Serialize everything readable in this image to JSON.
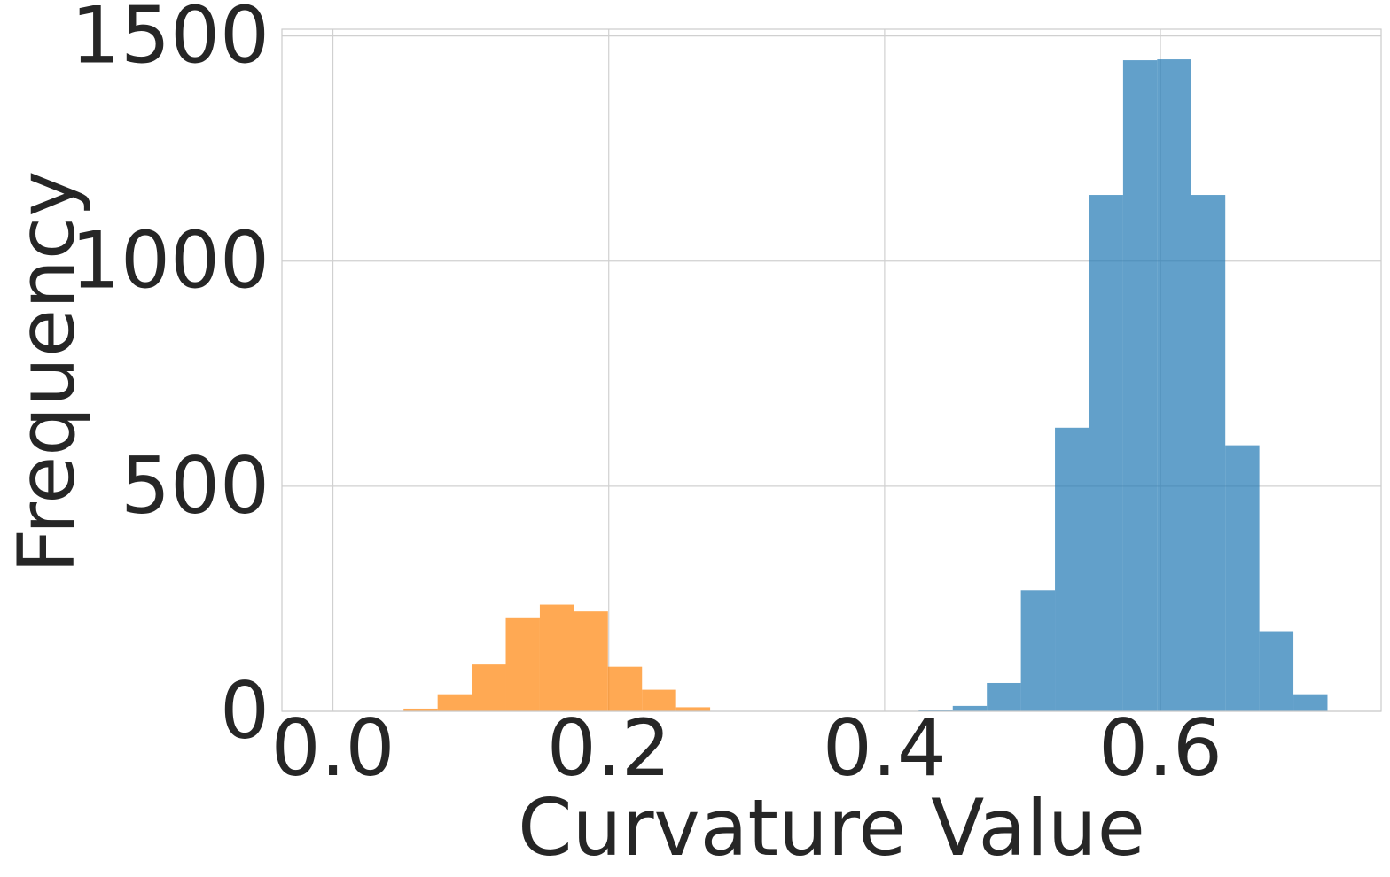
{
  "chart_data": {
    "type": "bar",
    "title": "",
    "xlabel": "Curvature Value",
    "ylabel": "Frequency",
    "xlim": [
      -0.037,
      0.76
    ],
    "ylim": [
      0,
      1515
    ],
    "xticks": [
      0.0,
      0.2,
      0.4,
      0.6
    ],
    "xtick_labels": [
      "0.0",
      "0.2",
      "0.4",
      "0.6"
    ],
    "yticks": [
      0,
      500,
      1000,
      1500
    ],
    "ytick_labels": [
      "0",
      "500",
      "1000",
      "1500"
    ],
    "grid": true,
    "legend": "none",
    "series": [
      {
        "color": "#ff8c1a",
        "opacity": 0.75,
        "bin_edges": [
          0.0512,
          0.0759,
          0.1006,
          0.1253,
          0.15,
          0.1747,
          0.1994,
          0.2241,
          0.2488,
          0.2735
        ],
        "values": [
          6,
          38,
          104,
          207,
          237,
          222,
          99,
          48,
          9
        ]
      },
      {
        "color": "#1f77b4",
        "opacity": 0.7,
        "bin_edges": [
          0.4247,
          0.4494,
          0.4741,
          0.4988,
          0.5235,
          0.5482,
          0.5729,
          0.5976,
          0.6223,
          0.647,
          0.6717,
          0.6964,
          0.7211
        ],
        "values": [
          3,
          12,
          63,
          269,
          630,
          1147,
          1446,
          1448,
          1147,
          591,
          178,
          38
        ]
      }
    ]
  }
}
